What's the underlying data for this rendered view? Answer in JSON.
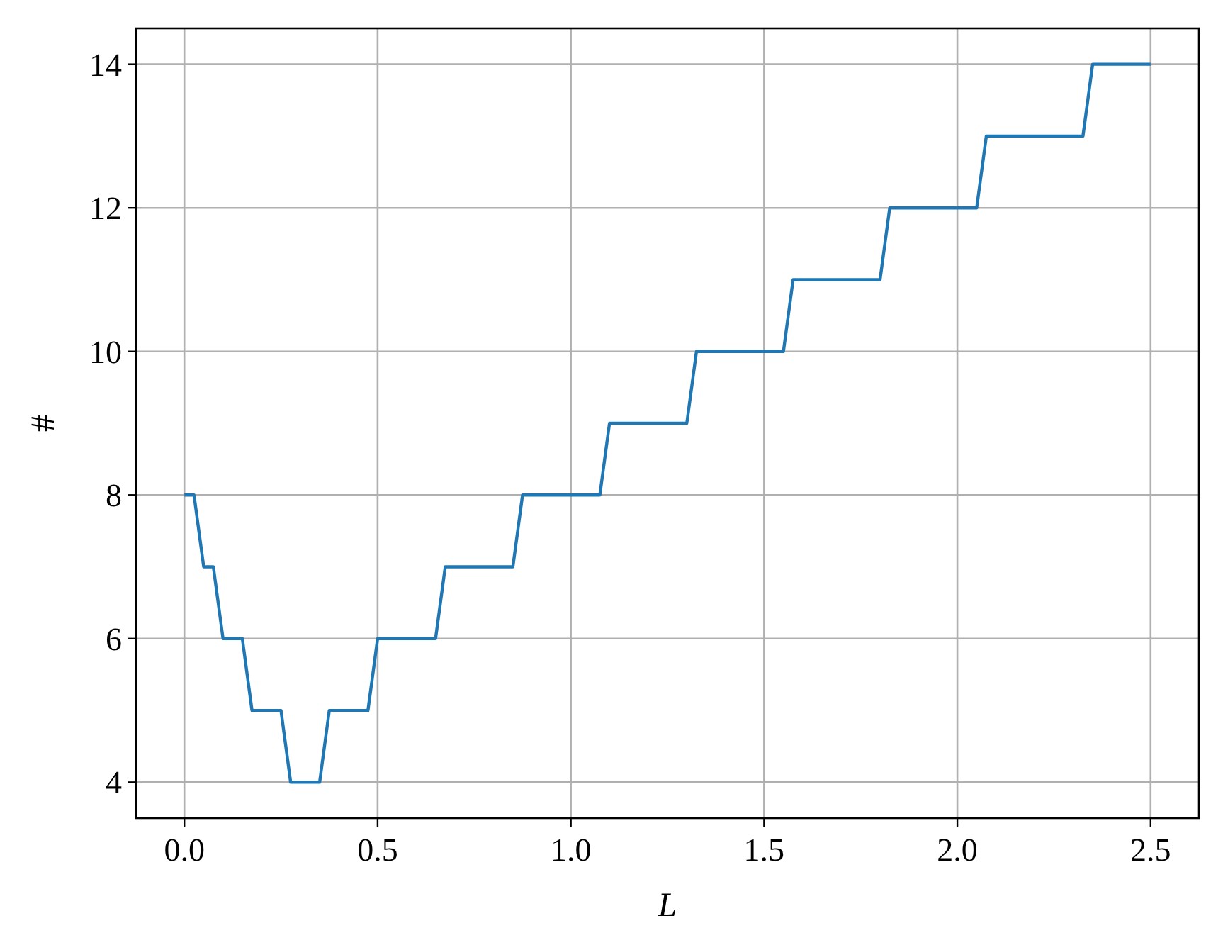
{
  "chart_data": {
    "type": "line",
    "xlabel": "L",
    "ylabel": "#",
    "series": [
      {
        "color": "#1f77b4",
        "x": [
          0,
          0.025,
          0.05,
          0.075,
          0.1,
          0.15,
          0.175,
          0.25,
          0.275,
          0.35,
          0.375,
          0.475,
          0.5,
          0.65,
          0.675,
          0.85,
          0.875,
          1.075,
          1.1,
          1.3,
          1.325,
          1.55,
          1.575,
          1.8,
          1.825,
          2.05,
          2.075,
          2.325,
          2.35,
          2.5
        ],
        "values": [
          8,
          8,
          7,
          7,
          6,
          6,
          5,
          5,
          4,
          4,
          5,
          5,
          6,
          6,
          7,
          7,
          8,
          8,
          9,
          9,
          10,
          10,
          11,
          11,
          12,
          12,
          13,
          13,
          14,
          14
        ]
      }
    ],
    "xlim": [
      -0.125,
      2.625
    ],
    "ylim": [
      3.5,
      14.5
    ],
    "xticks": [
      {
        "value": 0,
        "label": "0.0"
      },
      0.5,
      {
        "value": 1,
        "label": "1.0"
      },
      1.5,
      {
        "value": 2,
        "label": "2.0"
      },
      2.5
    ],
    "yticks": [
      4,
      6,
      8,
      10,
      12,
      14
    ],
    "grid": true,
    "marker": "none",
    "line_style": "solid"
  }
}
